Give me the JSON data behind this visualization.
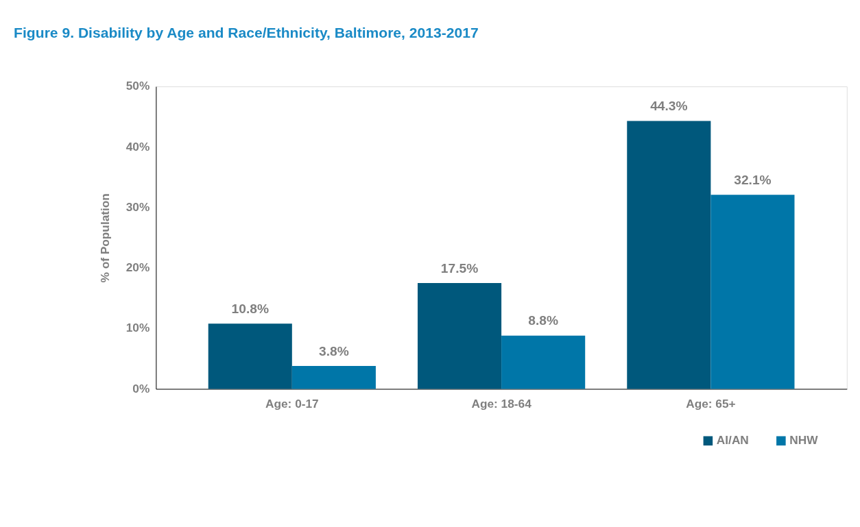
{
  "chart_data": {
    "type": "bar",
    "title": "Figure 9. Disability by Age and Race/Ethnicity, Baltimore, 2013-2017",
    "ylabel": "% of Population",
    "categories": [
      "Age: 0-17",
      "Age: 18-64",
      "Age: 65+"
    ],
    "series": [
      {
        "name": "AI/AN",
        "color": "#00587c",
        "values": [
          10.8,
          17.5,
          44.3
        ]
      },
      {
        "name": "NHW",
        "color": "#0076a8",
        "values": [
          3.8,
          8.8,
          32.1
        ]
      }
    ],
    "ylim": [
      0,
      50
    ],
    "yticks": [
      {
        "value": 0,
        "label": "0%"
      },
      {
        "value": 10,
        "label": "10%"
      },
      {
        "value": 20,
        "label": "20%"
      },
      {
        "value": 30,
        "label": "30%"
      },
      {
        "value": 40,
        "label": "40%"
      },
      {
        "value": 50,
        "label": "50%"
      }
    ],
    "value_labels": [
      [
        "10.8%",
        "17.5%",
        "44.3%"
      ],
      [
        "3.8%",
        "8.8%",
        "32.1%"
      ]
    ],
    "grid": false,
    "legend": "bottom right"
  }
}
